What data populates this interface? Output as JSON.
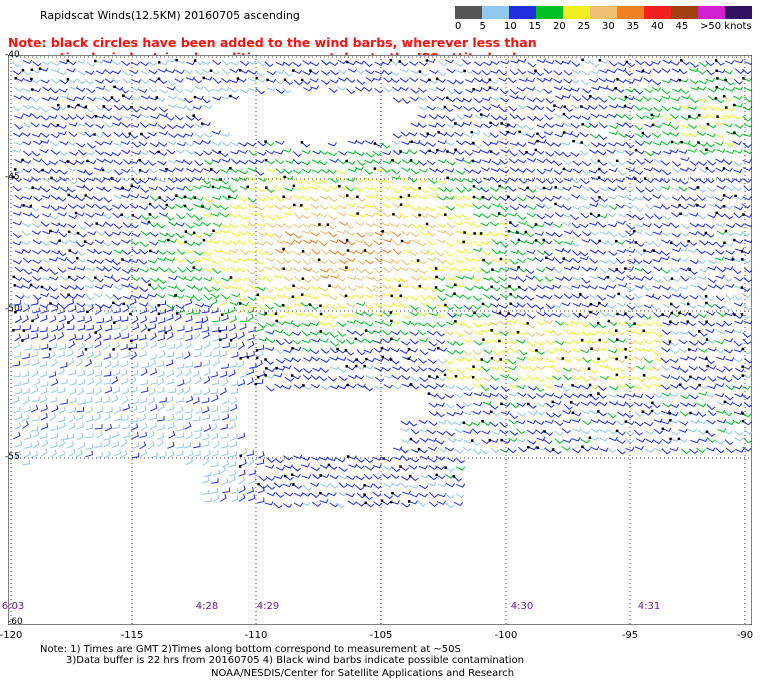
{
  "title": "Rapidscat Winds(12.5KM) 20160705 ascending",
  "note_line1": "Note: black circles have been added to the wind barbs, wherever less than",
  "note_line2": "optimal wind retrieval conditions are met due to the ISS attitude changes.",
  "legend": {
    "labels": [
      "0",
      "5",
      "10",
      "15",
      "20",
      "25",
      "30",
      "35",
      "40",
      "45",
      ">50 knots"
    ],
    "colors": [
      "#555555",
      "#8fc8f0",
      "#1e2fe0",
      "#00c020",
      "#f0f020",
      "#f0c070",
      "#f08020",
      "#f02020",
      "#a04010",
      "#d020d0",
      "#301060"
    ]
  },
  "lon_labels": [
    "-120",
    "-115",
    "-110",
    "-105",
    "-100",
    "-95",
    "-90"
  ],
  "lat_labels": [
    "-40",
    "-45",
    "-50",
    "-55",
    "-60"
  ],
  "time_labels": [
    "6:03",
    "4:28",
    "4:29",
    "4:30",
    "4:31"
  ],
  "footer": {
    "line1": "Note: 1) Times are GMT 2)Times along bottom correspond to measurement at ~50S",
    "line2": "3)Data buffer is 22 hrs from 20160705 4) Black wind barbs indicate possible contamination",
    "line3": "NOAA/NESDIS/Center for Satellite Applications and Research"
  }
}
